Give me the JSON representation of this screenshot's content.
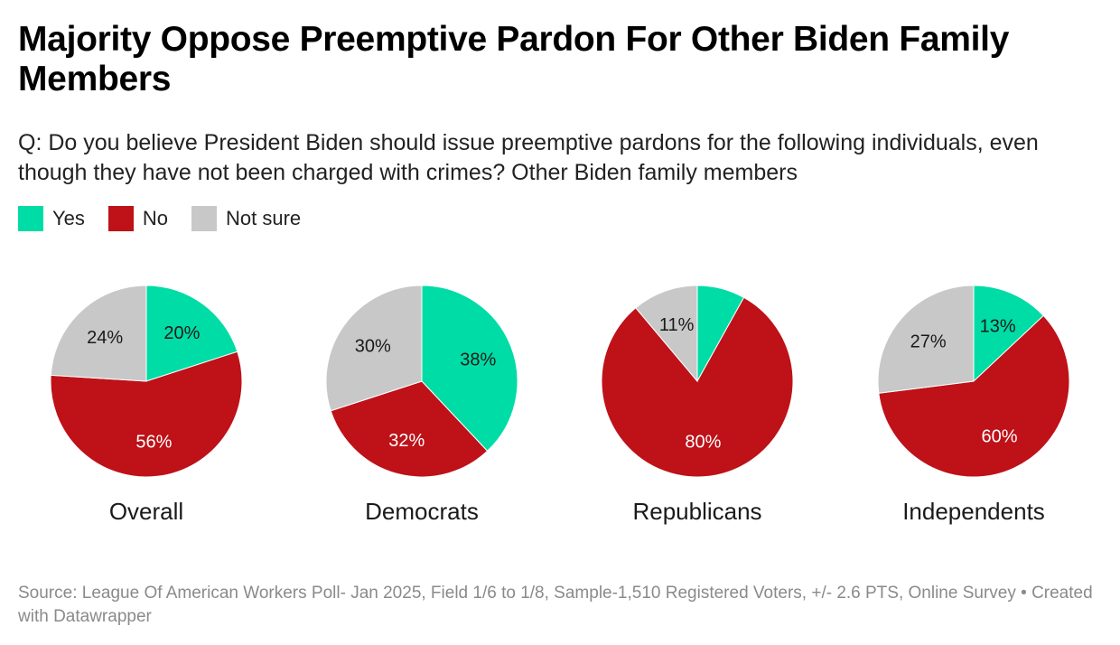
{
  "title": "Majority Oppose Preemptive Pardon For Other Biden Family Members",
  "subtitle": "Q: Do you believe President Biden should issue preemptive pardons for the following individuals, even though they have not been charged with crimes? Other Biden family members",
  "legend": [
    {
      "label": "Yes",
      "color": "#00dca5"
    },
    {
      "label": "No",
      "color": "#be1118"
    },
    {
      "label": "Not sure",
      "color": "#c8c8c8"
    }
  ],
  "footer": "Source: League Of American Workers Poll- Jan 2025, Field 1/6 to 1/8, Sample-1,510 Registered Voters, +/- 2.6 PTS, Online Survey • Created with Datawrapper",
  "chart_data": [
    {
      "type": "pie",
      "title": "Overall",
      "categories": [
        "Yes",
        "No",
        "Not sure"
      ],
      "values": [
        20,
        56,
        24
      ],
      "labels": [
        "20%",
        "56%",
        "24%"
      ]
    },
    {
      "type": "pie",
      "title": "Democrats",
      "categories": [
        "Yes",
        "No",
        "Not sure"
      ],
      "values": [
        38,
        32,
        30
      ],
      "labels": [
        "38%",
        "32%",
        "30%"
      ]
    },
    {
      "type": "pie",
      "title": "Republicans",
      "categories": [
        "Yes",
        "No",
        "Not sure"
      ],
      "values": [
        8,
        80,
        11
      ],
      "labels": [
        "",
        "80%",
        "11%"
      ]
    },
    {
      "type": "pie",
      "title": "Independents",
      "categories": [
        "Yes",
        "No",
        "Not sure"
      ],
      "values": [
        13,
        60,
        27
      ],
      "labels": [
        "13%",
        "60%",
        "27%"
      ]
    }
  ]
}
